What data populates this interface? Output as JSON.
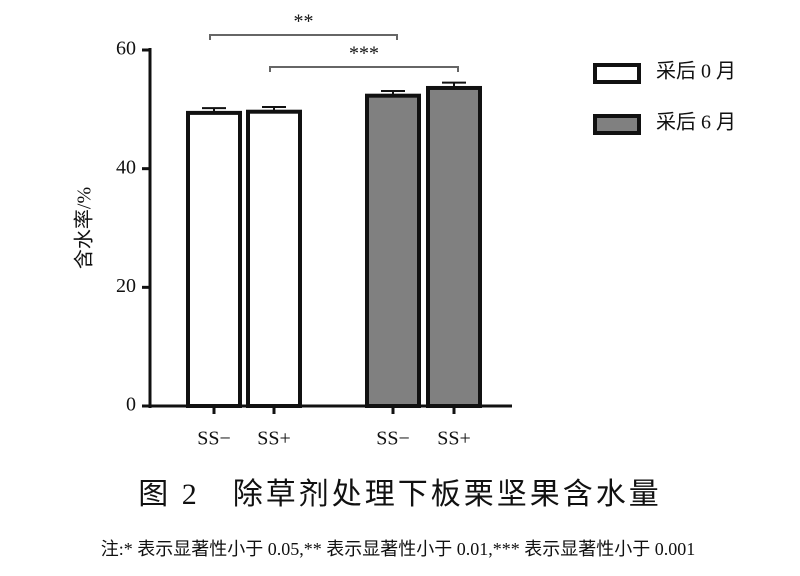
{
  "chart_data": {
    "type": "bar",
    "y_label": "含水率/%",
    "categories": [
      "SS−",
      "SS+",
      "SS−",
      "SS+"
    ],
    "series": [
      {
        "name": "采后 0 月",
        "color": "#ffffff",
        "values": [
          49.4,
          49.6,
          null,
          null
        ],
        "errors": [
          0.8,
          0.8,
          null,
          null
        ]
      },
      {
        "name": "采后 6 月",
        "color": "#808080",
        "values": [
          null,
          null,
          52.3,
          53.6
        ],
        "errors": [
          null,
          null,
          0.8,
          0.9
        ]
      }
    ],
    "ylim": [
      0,
      60
    ],
    "yticks": [
      0,
      20,
      40,
      60
    ],
    "significance": [
      {
        "label": "**",
        "between": [
          0,
          2
        ]
      },
      {
        "label": "***",
        "between": [
          1,
          3
        ]
      }
    ],
    "legend": "top-right",
    "caption": "图 2　除草剂处理下板栗坚果含水量",
    "note": "注:* 表示显著性小于 0.05,** 表示显著性小于 0.01,*** 表示显著性小于 0.001"
  }
}
